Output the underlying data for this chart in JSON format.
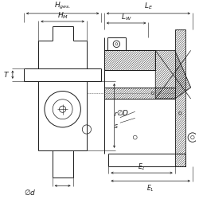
{
  "bg_color": "#ffffff",
  "line_color": "#1a1a1a",
  "font_size": 6.5,
  "font_size_small": 5.5
}
